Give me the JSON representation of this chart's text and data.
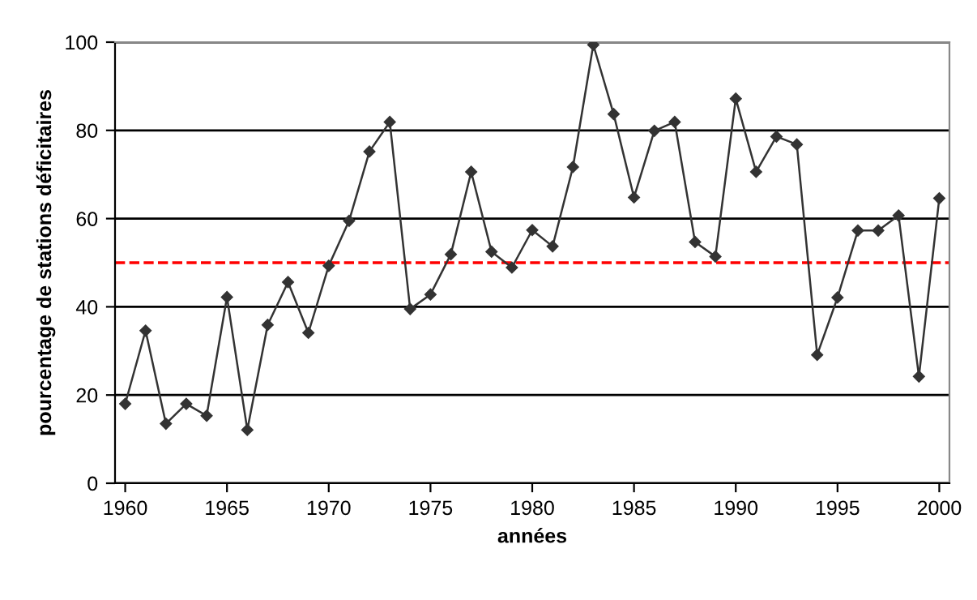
{
  "chart_data": {
    "type": "line",
    "xlabel": "années",
    "ylabel": "pourcentage de stations déficitaires",
    "x": [
      1960,
      1961,
      1962,
      1963,
      1964,
      1965,
      1966,
      1967,
      1968,
      1969,
      1970,
      1971,
      1972,
      1973,
      1974,
      1975,
      1976,
      1977,
      1978,
      1979,
      1980,
      1981,
      1982,
      1983,
      1984,
      1985,
      1986,
      1987,
      1988,
      1989,
      1990,
      1991,
      1992,
      1993,
      1994,
      1995,
      1996,
      1997,
      1998,
      1999,
      2000
    ],
    "series": [
      {
        "color": "#333333",
        "values": [
          18,
          34.6,
          13.5,
          18,
          15.3,
          42.2,
          12.1,
          35.9,
          45.6,
          34.1,
          49.3,
          59.5,
          75.2,
          81.9,
          39.5,
          42.8,
          51.9,
          70.6,
          52.5,
          48.9,
          57.4,
          53.7,
          71.7,
          99.4,
          83.7,
          64.8,
          79.9,
          81.9,
          54.7,
          51.4,
          87.2,
          70.6,
          78.6,
          76.8,
          29.1,
          42.1,
          57.3,
          57.3,
          60.7,
          24.2,
          64.6
        ]
      }
    ],
    "xlim": [
      1959.5,
      2000.5
    ],
    "xticks": [
      1960,
      1965,
      1970,
      1975,
      1980,
      1985,
      1990,
      1995,
      2000
    ],
    "ylim": [
      0,
      100
    ],
    "yticks": [
      0,
      20,
      40,
      60,
      80,
      100
    ],
    "grid": "y",
    "marker": "diamond",
    "line_style": "solid",
    "ref_lines": [
      {
        "axis": "y",
        "value": 50,
        "color": "#ff0000",
        "line_style": "dashed"
      }
    ]
  }
}
